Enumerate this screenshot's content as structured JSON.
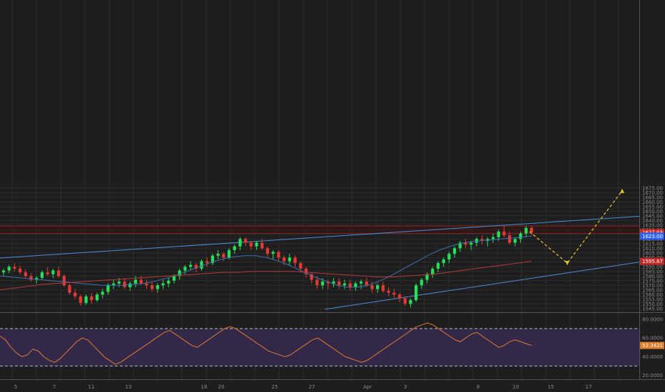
{
  "chart_data": [
    {
      "type": "candlestick",
      "panel": "price",
      "ylim": [
        1541,
        1878
      ],
      "y_ticks": [
        "1545.00",
        "1550.00",
        "1555.00",
        "1560.00",
        "1565.00",
        "1570.00",
        "1575.00",
        "1580.00",
        "1585.00",
        "1590.00",
        "1595.00",
        "1600.00",
        "1605.00",
        "1610.00",
        "1615.00",
        "1620.00",
        "1625.00",
        "1630.00",
        "1635.00",
        "1640.00",
        "1645.00",
        "1650.00",
        "1655.00",
        "1660.00",
        "1665.00",
        "1670.00",
        "1675.00"
      ],
      "x_ticks": [
        "5",
        "7",
        "11",
        "13",
        "18",
        "20",
        "25",
        "27",
        "Apr",
        "3",
        "8",
        "10",
        "15",
        "17"
      ],
      "grid": true,
      "last_price_labels": [
        {
          "value": "1627.03",
          "color": "#c62828"
        },
        {
          "value": "1623.00",
          "color": "#2962ff"
        },
        {
          "value": "1595.87",
          "color": "#c62828"
        }
      ],
      "resistance_zone": [
        1626,
        1634
      ],
      "colors": {
        "up": "#26e05a",
        "down": "#e53935",
        "ma_short": "#3d6fb0",
        "ma_long": "#b23a3a",
        "channel": "#4a90d9",
        "projection": "#e8c82a"
      },
      "candles": [
        [
          1584,
          1588,
          1580,
          1586
        ],
        [
          1586,
          1592,
          1583,
          1590
        ],
        [
          1590,
          1594,
          1585,
          1588
        ],
        [
          1588,
          1591,
          1582,
          1584
        ],
        [
          1584,
          1587,
          1578,
          1580
        ],
        [
          1580,
          1583,
          1574,
          1576
        ],
        [
          1576,
          1580,
          1572,
          1578
        ],
        [
          1578,
          1586,
          1576,
          1584
        ],
        [
          1584,
          1590,
          1580,
          1582
        ],
        [
          1582,
          1588,
          1578,
          1586
        ],
        [
          1586,
          1590,
          1578,
          1580
        ],
        [
          1580,
          1582,
          1568,
          1570
        ],
        [
          1570,
          1572,
          1560,
          1562
        ],
        [
          1562,
          1566,
          1555,
          1558
        ],
        [
          1558,
          1560,
          1548,
          1551
        ],
        [
          1551,
          1560,
          1549,
          1558
        ],
        [
          1558,
          1562,
          1550,
          1554
        ],
        [
          1554,
          1562,
          1552,
          1560
        ],
        [
          1560,
          1566,
          1556,
          1563
        ],
        [
          1563,
          1572,
          1560,
          1570
        ],
        [
          1570,
          1576,
          1566,
          1572
        ],
        [
          1572,
          1578,
          1568,
          1574
        ],
        [
          1574,
          1578,
          1566,
          1568
        ],
        [
          1568,
          1574,
          1564,
          1572
        ],
        [
          1572,
          1580,
          1568,
          1576
        ],
        [
          1576,
          1580,
          1570,
          1572
        ],
        [
          1572,
          1576,
          1566,
          1570
        ],
        [
          1570,
          1574,
          1563,
          1566
        ],
        [
          1566,
          1572,
          1562,
          1570
        ],
        [
          1570,
          1576,
          1566,
          1572
        ],
        [
          1572,
          1578,
          1568,
          1575
        ],
        [
          1575,
          1582,
          1572,
          1580
        ],
        [
          1580,
          1588,
          1576,
          1586
        ],
        [
          1586,
          1592,
          1582,
          1590
        ],
        [
          1590,
          1596,
          1586,
          1592
        ],
        [
          1592,
          1594,
          1584,
          1588
        ],
        [
          1588,
          1598,
          1586,
          1596
        ],
        [
          1596,
          1600,
          1590,
          1594
        ],
        [
          1594,
          1604,
          1592,
          1602
        ],
        [
          1602,
          1608,
          1598,
          1604
        ],
        [
          1604,
          1606,
          1596,
          1600
        ],
        [
          1600,
          1610,
          1598,
          1608
        ],
        [
          1608,
          1614,
          1604,
          1612
        ],
        [
          1612,
          1622,
          1608,
          1620
        ],
        [
          1620,
          1622,
          1612,
          1616
        ],
        [
          1616,
          1618,
          1608,
          1612
        ],
        [
          1612,
          1618,
          1608,
          1616
        ],
        [
          1616,
          1620,
          1608,
          1610
        ],
        [
          1610,
          1612,
          1600,
          1604
        ],
        [
          1604,
          1608,
          1598,
          1606
        ],
        [
          1606,
          1608,
          1596,
          1600
        ],
        [
          1600,
          1602,
          1592,
          1596
        ],
        [
          1596,
          1604,
          1592,
          1600
        ],
        [
          1600,
          1602,
          1590,
          1594
        ],
        [
          1594,
          1596,
          1584,
          1588
        ],
        [
          1588,
          1590,
          1578,
          1582
        ],
        [
          1582,
          1584,
          1572,
          1576
        ],
        [
          1576,
          1580,
          1566,
          1570
        ],
        [
          1570,
          1578,
          1566,
          1574
        ],
        [
          1574,
          1576,
          1566,
          1572
        ],
        [
          1572,
          1578,
          1568,
          1574
        ],
        [
          1574,
          1578,
          1566,
          1570
        ],
        [
          1570,
          1576,
          1566,
          1572
        ],
        [
          1572,
          1576,
          1564,
          1568
        ],
        [
          1568,
          1574,
          1564,
          1572
        ],
        [
          1572,
          1576,
          1566,
          1574
        ],
        [
          1574,
          1578,
          1568,
          1570
        ],
        [
          1570,
          1574,
          1562,
          1566
        ],
        [
          1566,
          1572,
          1562,
          1570
        ],
        [
          1570,
          1574,
          1562,
          1564
        ],
        [
          1564,
          1568,
          1558,
          1562
        ],
        [
          1562,
          1566,
          1556,
          1560
        ],
        [
          1560,
          1562,
          1552,
          1556
        ],
        [
          1556,
          1558,
          1548,
          1550
        ],
        [
          1550,
          1556,
          1546,
          1554
        ],
        [
          1554,
          1572,
          1552,
          1570
        ],
        [
          1570,
          1578,
          1566,
          1576
        ],
        [
          1576,
          1584,
          1572,
          1582
        ],
        [
          1582,
          1590,
          1578,
          1588
        ],
        [
          1588,
          1596,
          1584,
          1594
        ],
        [
          1594,
          1600,
          1590,
          1598
        ],
        [
          1598,
          1606,
          1594,
          1604
        ],
        [
          1604,
          1612,
          1600,
          1610
        ],
        [
          1610,
          1618,
          1606,
          1616
        ],
        [
          1616,
          1620,
          1610,
          1614
        ],
        [
          1614,
          1618,
          1608,
          1616
        ],
        [
          1616,
          1622,
          1612,
          1620
        ],
        [
          1620,
          1624,
          1614,
          1618
        ],
        [
          1618,
          1622,
          1612,
          1620
        ],
        [
          1620,
          1626,
          1616,
          1622
        ],
        [
          1622,
          1630,
          1618,
          1628
        ],
        [
          1628,
          1634,
          1622,
          1624
        ],
        [
          1624,
          1628,
          1614,
          1616
        ],
        [
          1616,
          1622,
          1612,
          1620
        ],
        [
          1620,
          1628,
          1616,
          1626
        ],
        [
          1626,
          1634,
          1622,
          1632
        ],
        [
          1632,
          1634,
          1624,
          1627
        ]
      ],
      "ma_short": [
        1580,
        1579,
        1578,
        1577,
        1576,
        1575,
        1574,
        1573,
        1572,
        1571,
        1570,
        1570,
        1570,
        1571,
        1572,
        1574,
        1577,
        1580,
        1584,
        1588,
        1592,
        1596,
        1599,
        1601,
        1602,
        1602,
        1600,
        1597,
        1593,
        1588,
        1583,
        1578,
        1574,
        1570,
        1568,
        1568,
        1570,
        1574,
        1579,
        1585,
        1591,
        1597,
        1603,
        1608,
        1612,
        1615,
        1617,
        1618,
        1619,
        1620,
        1621,
        1622,
        1623
      ],
      "ma_long": [
        1565,
        1567,
        1569,
        1571,
        1572,
        1573,
        1574,
        1575,
        1576,
        1577,
        1578,
        1579,
        1580,
        1581,
        1582,
        1583,
        1584,
        1584,
        1585,
        1585,
        1585,
        1585,
        1584,
        1583,
        1582,
        1581,
        1580,
        1579,
        1579,
        1580,
        1581,
        1582,
        1584,
        1586,
        1588,
        1590,
        1592,
        1594,
        1596
      ],
      "channel_upper": {
        "x": [
          0,
          1
        ],
        "y": [
          1601,
          1646
        ]
      },
      "channel_lower": {
        "x": [
          0,
          1
        ],
        "y": [
          1541,
          1592
        ]
      },
      "projection": [
        [
          1630,
          1628
        ],
        [
          1594,
          1594
        ],
        [
          1672,
          1672
        ]
      ]
    },
    {
      "type": "line",
      "panel": "oscillator",
      "ylim": [
        16,
        86
      ],
      "y_ticks": [
        "20.0000",
        "40.0000",
        "60.0000",
        "80.0000"
      ],
      "levels": [
        30,
        70
      ],
      "last_value_label": "52.3421",
      "color": "#e07b2a",
      "band_color": "#3a2a55",
      "values": [
        62,
        58,
        50,
        44,
        40,
        42,
        48,
        46,
        40,
        36,
        34,
        38,
        44,
        50,
        56,
        60,
        58,
        52,
        46,
        40,
        36,
        32,
        34,
        38,
        42,
        46,
        50,
        54,
        58,
        62,
        66,
        68,
        64,
        60,
        56,
        52,
        50,
        54,
        58,
        62,
        66,
        70,
        72,
        70,
        66,
        62,
        58,
        54,
        50,
        46,
        44,
        42,
        40,
        42,
        46,
        50,
        54,
        58,
        60,
        56,
        52,
        48,
        44,
        40,
        38,
        36,
        34,
        36,
        40,
        44,
        48,
        52,
        56,
        60,
        64,
        68,
        72,
        74,
        76,
        74,
        70,
        66,
        62,
        58,
        56,
        60,
        64,
        66,
        62,
        58,
        54,
        50,
        52,
        56,
        58,
        56,
        54,
        52
      ]
    }
  ]
}
